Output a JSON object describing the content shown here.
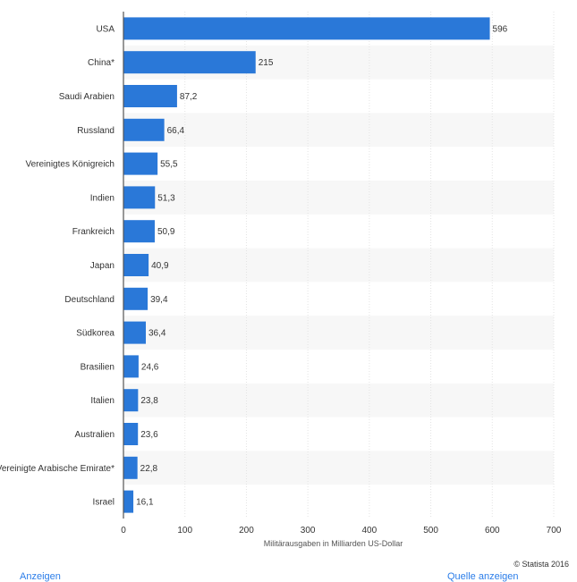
{
  "chart_data": {
    "type": "bar",
    "orientation": "horizontal",
    "categories": [
      "USA",
      "China*",
      "Saudi Arabien",
      "Russland",
      "Vereinigtes Königreich",
      "Indien",
      "Frankreich",
      "Japan",
      "Deutschland",
      "Südkorea",
      "Brasilien",
      "Italien",
      "Australien",
      "Vereinigte Arabische Emirate*",
      "Israel"
    ],
    "series": [
      {
        "values": [
          596,
          215,
          87.2,
          66.4,
          55.5,
          51.3,
          50.9,
          40.9,
          39.4,
          36.4,
          24.6,
          23.8,
          23.6,
          22.8,
          16.1
        ]
      }
    ],
    "value_labels": [
      "596",
      "215",
      "87,2",
      "66,4",
      "55,5",
      "51,3",
      "50,9",
      "40,9",
      "39,4",
      "36,4",
      "24,6",
      "23,8",
      "23,6",
      "22,8",
      "16,1"
    ],
    "xlabel": "Militärausgaben in Milliarden US-Dollar",
    "ylabel": "",
    "xlim": [
      0,
      700
    ],
    "xticks": [
      0,
      100,
      200,
      300,
      400,
      500,
      600,
      700
    ],
    "grid": true,
    "bar_color": "#2a78d8",
    "stripe_color": "#f7f7f7",
    "grid_color": "#e3e3e3"
  },
  "footer": {
    "credit": "© Statista 2016",
    "left_link": "Anzeigen",
    "right_link": "Quelle anzeigen"
  }
}
